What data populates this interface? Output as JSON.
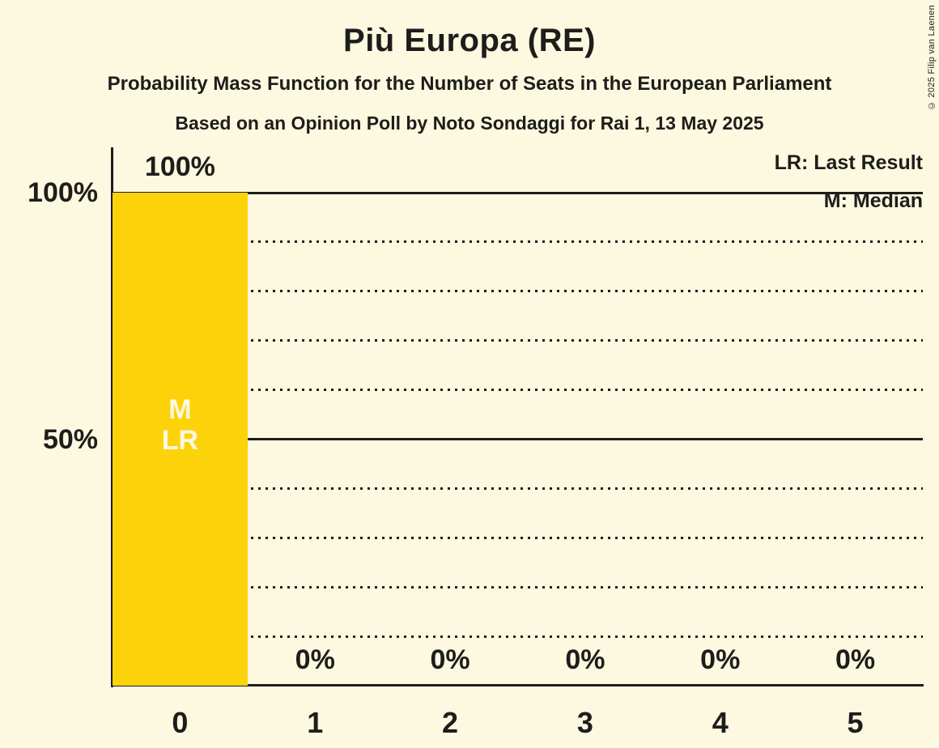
{
  "chart_data": {
    "type": "bar",
    "title": "Più Europa (RE)",
    "subtitle": "Probability Mass Function for the Number of Seats in the European Parliament",
    "poll_info": "Based on an Opinion Poll by Noto Sondaggi for Rai 1, 13 May 2025",
    "categories": [
      "0",
      "1",
      "2",
      "3",
      "4",
      "5"
    ],
    "values": [
      100,
      0,
      0,
      0,
      0,
      0
    ],
    "value_labels": [
      "100%",
      "0%",
      "0%",
      "0%",
      "0%",
      "0%"
    ],
    "xlabel": "",
    "ylabel": "",
    "ylim": [
      0,
      100
    ],
    "y_axis_ticks": [
      {
        "label": "100%",
        "value": 100
      },
      {
        "label": "50%",
        "value": 50
      }
    ],
    "gridlines": {
      "solid": [
        100,
        50
      ],
      "dotted": [
        90,
        80,
        70,
        60,
        40,
        30,
        20,
        10
      ]
    },
    "legend_position": "top-right",
    "legend": {
      "lr": "LR: Last Result",
      "m": "M: Median"
    },
    "bar_annotations": [
      {
        "category": "0",
        "lines": [
          "M",
          "LR"
        ]
      }
    ],
    "copyright": "© 2025 Filip van Laenen",
    "colors": {
      "background": "#FDF8E0",
      "bar": "#FCD30A",
      "text": "#1D1D1B",
      "bar_text": "#FDF8E0"
    }
  }
}
